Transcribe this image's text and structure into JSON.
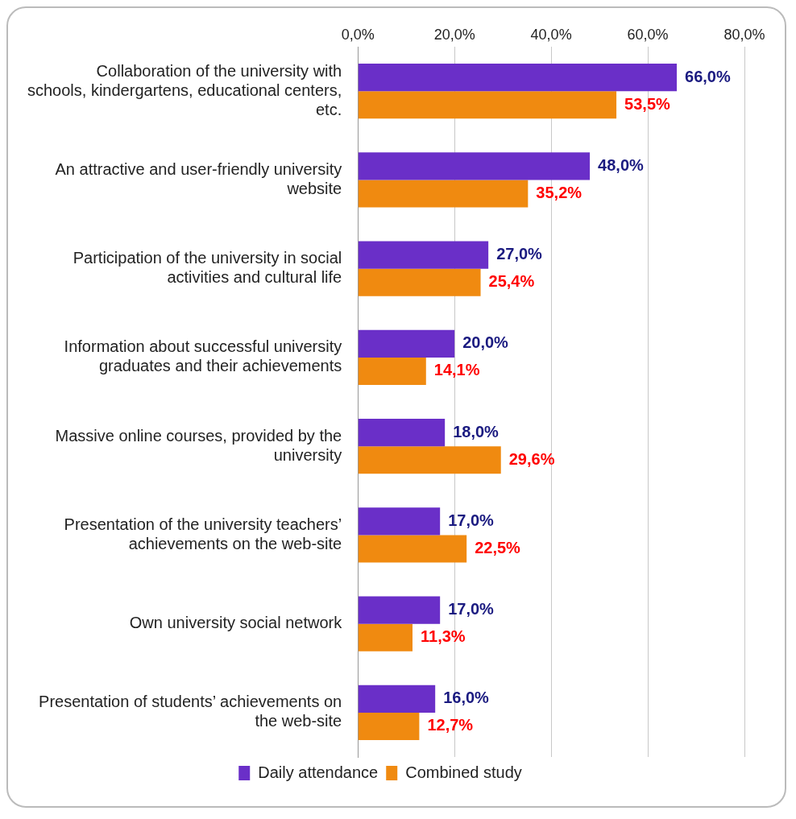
{
  "chart_data": {
    "type": "bar",
    "orientation": "horizontal",
    "categories": [
      "Collaboration of the university with schools, kindergartens, educational centers, etc.",
      "An attractive and user-friendly university website",
      "Participation of the university in social activities and cultural life",
      "Information about successful university graduates and their achievements",
      "Massive online courses, provided by the university",
      "Presentation of the university teachers’ achievements on the web-site",
      "Own university social network",
      "Presentation of students’ achievements on the web-site"
    ],
    "series": [
      {
        "name": "Daily attendance",
        "color": "#6a2fc8",
        "values": [
          66.0,
          48.0,
          27.0,
          20.0,
          18.0,
          17.0,
          17.0,
          16.0
        ],
        "value_labels": [
          "66,0%",
          "48,0%",
          "27,0%",
          "20,0%",
          "18,0%",
          "17,0%",
          "17,0%",
          "16,0%"
        ]
      },
      {
        "name": "Combined study",
        "color": "#f08a10",
        "values": [
          53.5,
          35.2,
          25.4,
          14.1,
          29.6,
          22.5,
          11.3,
          12.7
        ],
        "value_labels": [
          "53,5%",
          "35,2%",
          "25,4%",
          "14,1%",
          "29,6%",
          "22,5%",
          "11,3%",
          "12,7%"
        ]
      }
    ],
    "xlim": [
      0,
      80
    ],
    "xticks": [
      {
        "value": 0,
        "label": "0,0%"
      },
      {
        "value": 20,
        "label": "20,0%"
      },
      {
        "value": 40,
        "label": "40,0%"
      },
      {
        "value": 60,
        "label": "60,0%"
      },
      {
        "value": 80,
        "label": "80,0%"
      }
    ],
    "grid": "x",
    "legend": "bottom"
  }
}
